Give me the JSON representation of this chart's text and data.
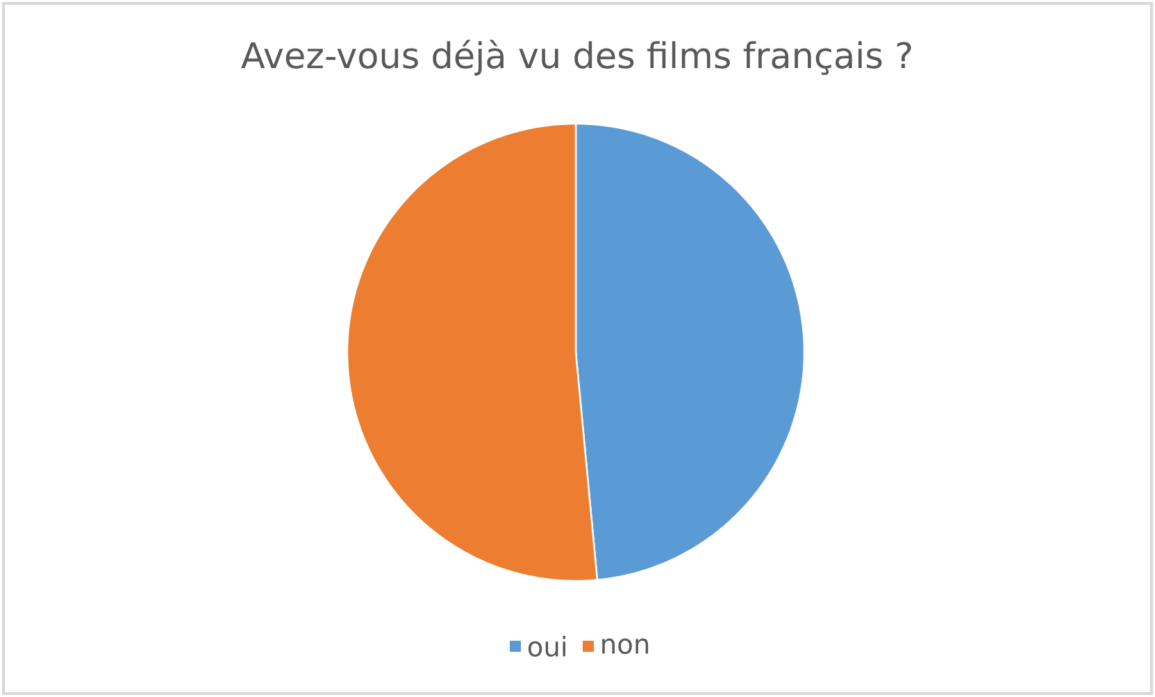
{
  "chart_data": {
    "type": "pie",
    "title": "Avez-vous déjà vu des films français ?",
    "categories": [
      "oui",
      "non"
    ],
    "values": [
      48.5,
      51.5
    ],
    "colors": [
      "#5b9bd5",
      "#ed7d31"
    ],
    "legend": "bottom"
  }
}
